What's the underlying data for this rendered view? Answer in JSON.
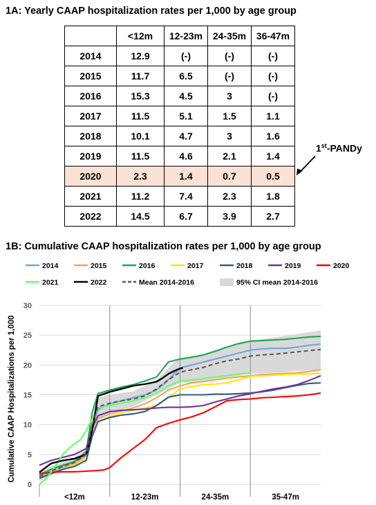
{
  "table_title": "1A: Yearly CAAP hospitalization rates per 1,000 by age group",
  "table": {
    "columns": [
      "",
      "<12m",
      "12-23m",
      "24-35m",
      "36-47m"
    ],
    "rows": [
      [
        "2014",
        "12.9",
        "(-)",
        "(-)",
        "(-)"
      ],
      [
        "2015",
        "11.7",
        "6.5",
        "(-)",
        "(-)"
      ],
      [
        "2016",
        "15.3",
        "4.5",
        "3",
        "(-)"
      ],
      [
        "2017",
        "11.5",
        "5.1",
        "1.5",
        "1.1"
      ],
      [
        "2018",
        "10.1",
        "4.7",
        "3",
        "1.6"
      ],
      [
        "2019",
        "11.5",
        "4.6",
        "2.1",
        "1.4"
      ],
      [
        "2020",
        "2.3",
        "1.4",
        "0.7",
        "0.5"
      ],
      [
        "2021",
        "11.2",
        "7.4",
        "2.3",
        "1.8"
      ],
      [
        "2022",
        "14.5",
        "6.7",
        "3.9",
        "2.7"
      ]
    ],
    "highlight_row": "2020",
    "highlight_color": "#fbe2d5"
  },
  "annotation": {
    "superscript_prefix": "1",
    "superscript": "st",
    "text": "-PANDy"
  },
  "chart_title": "1B: Cumulative CAAP hospitalization rates per 1,000 by age group",
  "chart_data": {
    "type": "line",
    "ylabel": "Cumulative CAAP Hospitalizations per 1,000",
    "xlabel": "",
    "ylim": [
      0,
      30
    ],
    "yticks": [
      "0",
      "5",
      "10",
      "15",
      "20",
      "25",
      "30"
    ],
    "xlim": [
      0,
      48
    ],
    "age_bands": [
      "<12m",
      "12-23m",
      "24-35m",
      "35-47m"
    ],
    "band_edges_months": [
      12,
      24,
      36
    ],
    "grid": "horizontal",
    "legend_position": "top",
    "band": {
      "name": "95% CI mean 2014-2016",
      "color": "#d9d9d9",
      "x": [
        0,
        2,
        4,
        6,
        8,
        9,
        10,
        12,
        14,
        16,
        18,
        20,
        21,
        22,
        23,
        24,
        26,
        28,
        30,
        32,
        34,
        36,
        38,
        40,
        42,
        44,
        46,
        48
      ],
      "lower": [
        0.5,
        1.5,
        2.5,
        3,
        4.5,
        8,
        11,
        12,
        12.5,
        13,
        14,
        15,
        15.5,
        16,
        16.5,
        17,
        17,
        17.3,
        17.5,
        18,
        18.2,
        18.5,
        18.6,
        18.7,
        18.8,
        19,
        19.1,
        19.2
      ],
      "upper": [
        2,
        3,
        3.8,
        4.5,
        6,
        11,
        14.5,
        15,
        15.3,
        15.6,
        16.5,
        17.5,
        18.5,
        19.5,
        20.5,
        21,
        21.5,
        21.8,
        22.5,
        23,
        23.5,
        24,
        24.3,
        24.6,
        24.9,
        25.2,
        25.5,
        25.8
      ]
    },
    "series": [
      {
        "name": "2014",
        "color": "#6fa8dc",
        "dash": false,
        "x": [
          0,
          2,
          4,
          6,
          8,
          9,
          10,
          12,
          14,
          16,
          18,
          20,
          22,
          24,
          26,
          28,
          30,
          32,
          34,
          36,
          38,
          40,
          42,
          44,
          46,
          48
        ],
        "y": [
          1.5,
          2.5,
          3,
          3.6,
          5,
          10,
          12.5,
          13.5,
          14,
          14.5,
          15,
          15.8,
          17.5,
          19.5,
          20,
          20.5,
          21,
          21.5,
          22,
          22.5,
          22.7,
          22.8,
          22.8,
          23,
          23.3,
          23.5
        ]
      },
      {
        "name": "2015",
        "color": "#f4a261",
        "dash": false,
        "x": [
          0,
          2,
          4,
          6,
          8,
          9,
          10,
          12,
          14,
          16,
          18,
          20,
          22,
          24,
          26,
          28,
          30,
          32,
          34,
          36,
          38,
          40,
          42,
          44,
          46,
          48
        ],
        "y": [
          1.3,
          2,
          2.8,
          3.5,
          4.8,
          9,
          11,
          11.8,
          12.3,
          12.8,
          13.5,
          14.5,
          15.8,
          16.5,
          17,
          17.2,
          17.5,
          17.8,
          18,
          18.2,
          18.4,
          18.5,
          18.6,
          18.7,
          18.9,
          19.2
        ]
      },
      {
        "name": "2016",
        "color": "#1aa657",
        "dash": false,
        "x": [
          0,
          2,
          4,
          6,
          8,
          9,
          10,
          12,
          14,
          16,
          18,
          20,
          22,
          24,
          26,
          28,
          30,
          32,
          34,
          36,
          38,
          40,
          42,
          44,
          46,
          48
        ],
        "y": [
          1.6,
          2.5,
          3.2,
          3.8,
          5.5,
          12,
          15.2,
          15.8,
          16.3,
          16.7,
          17.3,
          18,
          20.5,
          21,
          21.3,
          21.7,
          22.3,
          23,
          23.6,
          24,
          24.1,
          24.2,
          24.3,
          24.5,
          24.7,
          24.8
        ]
      },
      {
        "name": "2017",
        "color": "#ffe600",
        "dash": false,
        "x": [
          0,
          2,
          4,
          6,
          8,
          9,
          10,
          12,
          14,
          16,
          18,
          20,
          22,
          24,
          26,
          28,
          30,
          32,
          34,
          36,
          38,
          40,
          42,
          44,
          46,
          48
        ],
        "y": [
          1.2,
          1.8,
          2.5,
          3.2,
          4.2,
          8,
          10.5,
          11.3,
          12,
          12.4,
          12.8,
          13.2,
          14.5,
          16,
          16.4,
          16.7,
          16.8,
          17,
          17.5,
          18.1,
          18.2,
          18.3,
          18.4,
          18.5,
          18.5,
          18.6
        ]
      },
      {
        "name": "2018",
        "color": "#2f5a8a",
        "dash": false,
        "x": [
          0,
          2,
          4,
          6,
          8,
          9,
          10,
          12,
          14,
          16,
          18,
          20,
          22,
          24,
          26,
          28,
          30,
          32,
          34,
          36,
          38,
          40,
          42,
          44,
          46,
          48
        ],
        "y": [
          1,
          1.8,
          2.5,
          3,
          4,
          8,
          10.5,
          11.2,
          11.6,
          11.8,
          12.2,
          13.2,
          14.6,
          15,
          15,
          15,
          15.1,
          15.1,
          15.2,
          15.3,
          15.5,
          15.8,
          16.2,
          16.6,
          16.9,
          17
        ]
      },
      {
        "name": "2019",
        "color": "#7030a0",
        "dash": false,
        "x": [
          0,
          2,
          4,
          6,
          8,
          9,
          10,
          12,
          14,
          16,
          18,
          20,
          22,
          24,
          26,
          28,
          30,
          32,
          34,
          36,
          38,
          40,
          42,
          44,
          46,
          48
        ],
        "y": [
          3.2,
          4,
          4.5,
          5,
          6,
          9.5,
          11.5,
          12.2,
          12.4,
          12.5,
          12.6,
          12.8,
          12.9,
          12.9,
          13,
          13.2,
          13.8,
          14.3,
          14.8,
          15.2,
          15.6,
          16,
          16.3,
          16.7,
          17.4,
          18.2
        ]
      },
      {
        "name": "2020",
        "color": "#ff0000",
        "dash": false,
        "x": [
          0,
          2,
          4,
          6,
          8,
          10,
          11,
          12,
          14,
          16,
          18,
          20,
          22,
          24,
          26,
          28,
          30,
          32,
          34,
          36,
          38,
          40,
          42,
          44,
          46,
          48
        ],
        "y": [
          1.8,
          2,
          2.1,
          2.1,
          2.2,
          2.3,
          2.4,
          2.8,
          4.5,
          6,
          7.5,
          9.5,
          10.2,
          10.8,
          11.3,
          12,
          13,
          14,
          14.2,
          14.3,
          14.5,
          14.6,
          14.7,
          14.8,
          15,
          15.3
        ]
      },
      {
        "name": "2021",
        "color": "#66ff66",
        "dash": false,
        "x": [
          0,
          1,
          2,
          3,
          4,
          5,
          6,
          7,
          8,
          9,
          10,
          12,
          14,
          16,
          18,
          20,
          22,
          24,
          26,
          28,
          30,
          32,
          34,
          36
        ],
        "y": [
          0,
          0.8,
          2,
          3.5,
          5,
          6,
          6.8,
          7.5,
          9,
          11,
          12.8,
          13.2,
          13.6,
          14,
          14.5,
          15.3,
          16.5,
          17.3,
          17.5,
          17.7,
          18,
          18.2,
          18.5,
          18.7
        ]
      },
      {
        "name": "2022",
        "color": "#000000",
        "dash": false,
        "x": [
          0,
          2,
          4,
          6,
          8,
          9,
          10,
          12,
          14,
          16,
          18,
          20,
          21,
          22,
          23,
          24,
          24.5
        ],
        "y": [
          2,
          3.5,
          4,
          4.3,
          5,
          9,
          14.8,
          15.5,
          16,
          16.5,
          16.8,
          17.2,
          17.8,
          18.5,
          19,
          19.4,
          19.5
        ]
      },
      {
        "name": "Mean 2014-2016",
        "color": "#595959",
        "dash": true,
        "x": [
          0,
          2,
          4,
          6,
          8,
          9,
          10,
          12,
          14,
          16,
          18,
          20,
          22,
          24,
          26,
          28,
          30,
          32,
          34,
          36,
          38,
          40,
          42,
          44,
          46,
          48
        ],
        "y": [
          1.3,
          2.2,
          3,
          3.7,
          5,
          10,
          13,
          13.6,
          14,
          14.3,
          14.8,
          16,
          17.5,
          18.8,
          19.2,
          19.6,
          20.2,
          20.7,
          21,
          21.5,
          21.7,
          21.8,
          22,
          22.2,
          22.4,
          22.6
        ]
      }
    ]
  }
}
